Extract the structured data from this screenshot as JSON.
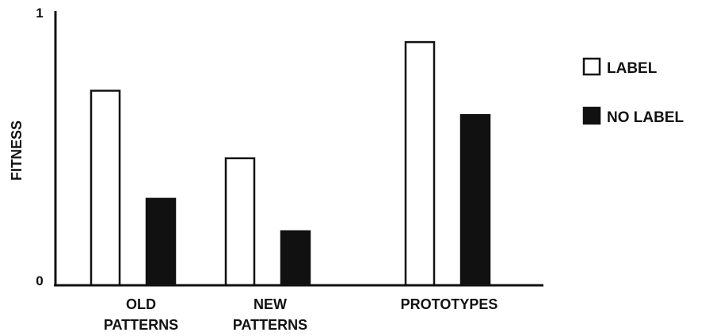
{
  "chart_data": {
    "type": "bar",
    "title": "",
    "xlabel": "",
    "ylabel": "FITNESS",
    "ylim": [
      0,
      1
    ],
    "y_ticks": [
      "0",
      "1"
    ],
    "grid": false,
    "legend_placement": "right",
    "categories": [
      [
        "OLD",
        "PATTERNS"
      ],
      [
        "NEW",
        "PATTERNS"
      ],
      [
        "PROTOTYPES"
      ]
    ],
    "series": [
      {
        "name": "LABEL",
        "values": [
          0.72,
          0.47,
          0.9
        ],
        "fill": "#ffffff",
        "stroke": "#111111"
      },
      {
        "name": "NO LABEL",
        "values": [
          0.32,
          0.2,
          0.63
        ],
        "fill": "#111111",
        "stroke": "#111111"
      }
    ]
  }
}
